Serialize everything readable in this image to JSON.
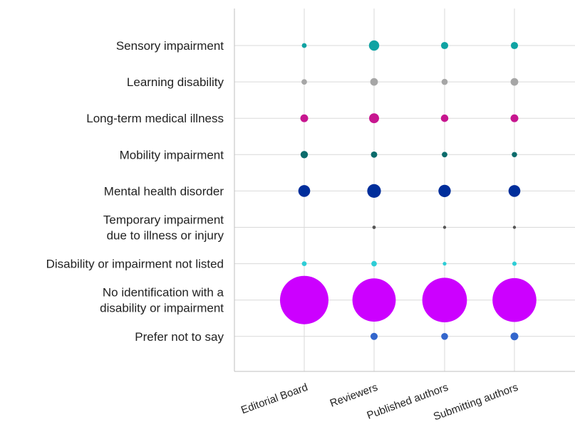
{
  "chart_data": {
    "type": "bubble",
    "title": "",
    "xlabel": "",
    "ylabel": "",
    "grid": true,
    "legend": "none",
    "categories": [
      "Editorial Board",
      "Reviewers",
      "Published authors",
      "Submitting authors"
    ],
    "rows": [
      {
        "label": [
          "Sensory impairment"
        ],
        "color": "#0fa3a3",
        "values": [
          1.0,
          4.5,
          2.2,
          2.2
        ]
      },
      {
        "label": [
          "Learning disability"
        ],
        "color": "#a6a6a6",
        "values": [
          1.3,
          2.5,
          1.6,
          2.5
        ]
      },
      {
        "label": [
          "Long-term medical illness"
        ],
        "color": "#c7168f",
        "values": [
          2.6,
          4.2,
          2.4,
          2.6
        ]
      },
      {
        "label": [
          "Mobility impairment"
        ],
        "color": "#0b6b6b",
        "values": [
          2.3,
          1.7,
          1.3,
          1.2
        ]
      },
      {
        "label": [
          "Mental health disorder"
        ],
        "color": "#002e9b",
        "values": [
          6.0,
          8.0,
          6.5,
          6.0
        ]
      },
      {
        "label": [
          "Temporary impairment",
          "due to illness or injury"
        ],
        "color": "#555555",
        "values": [
          0,
          0.5,
          0.3,
          0.3
        ]
      },
      {
        "label": [
          "Disability or impairment not listed"
        ],
        "color": "#2ecdd6",
        "values": [
          1.0,
          1.3,
          0.6,
          0.8
        ]
      },
      {
        "label": [
          "No identification with a",
          "disability or impairment"
        ],
        "color": "#cc00ff",
        "values": [
          100,
          80,
          85,
          82
        ]
      },
      {
        "label": [
          "Prefer not to say"
        ],
        "color": "#3366cc",
        "values": [
          0,
          2.2,
          2.0,
          2.6
        ]
      }
    ]
  }
}
